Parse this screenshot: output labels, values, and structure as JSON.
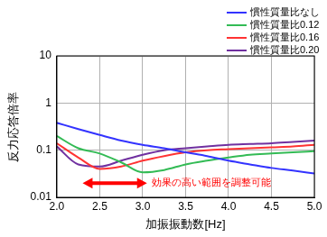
{
  "chart_data": {
    "type": "line",
    "x_label": "加振振動数[Hz]",
    "y_label": "反力応答倍率",
    "x": [
      2.0,
      2.25,
      2.5,
      2.75,
      3.0,
      3.25,
      3.5,
      3.75,
      4.0,
      4.25,
      4.5,
      4.75,
      5.0
    ],
    "series": [
      {
        "name": "慣性質量比なし",
        "color": "#3333ff",
        "values": [
          0.38,
          0.28,
          0.21,
          0.16,
          0.13,
          0.11,
          0.09,
          0.075,
          0.06,
          0.05,
          0.042,
          0.037,
          0.032
        ]
      },
      {
        "name": "慣性質量比0.12",
        "color": "#33bb55",
        "values": [
          0.2,
          0.11,
          0.085,
          0.055,
          0.034,
          0.038,
          0.05,
          0.06,
          0.07,
          0.08,
          0.085,
          0.09,
          0.095
        ]
      },
      {
        "name": "慣性質量比0.16",
        "color": "#ff3333",
        "values": [
          0.14,
          0.07,
          0.04,
          0.045,
          0.06,
          0.075,
          0.09,
          0.1,
          0.105,
          0.11,
          0.115,
          0.12,
          0.13
        ]
      },
      {
        "name": "慣性質量比0.20",
        "color": "#7030a0",
        "values": [
          0.12,
          0.05,
          0.045,
          0.06,
          0.08,
          0.1,
          0.11,
          0.12,
          0.13,
          0.135,
          0.14,
          0.15,
          0.16
        ]
      }
    ],
    "xlim": [
      2.0,
      5.0
    ],
    "xticks": [
      {
        "value": 2,
        "label": "2.0"
      },
      {
        "value": 2.5,
        "label": "2.5"
      },
      {
        "value": 3,
        "label": "3.0"
      },
      {
        "value": 3.5,
        "label": "3.5"
      },
      {
        "value": 4,
        "label": "4.0"
      },
      {
        "value": 4.5,
        "label": "4.5"
      },
      {
        "value": 5,
        "label": "5.0"
      }
    ],
    "ylim": [
      0.01,
      10
    ],
    "yticks": [
      0.01,
      0.1,
      1,
      10
    ],
    "log": "y",
    "grid": true,
    "legend": "top right",
    "annotations": [
      {
        "text": "効果の高い範囲を調整可能",
        "x_start": 2.3,
        "x_end": 3.05,
        "y": 0.02,
        "color": "#ff0000"
      }
    ]
  }
}
